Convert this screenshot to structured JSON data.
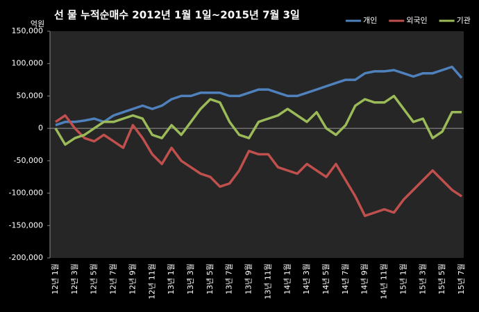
{
  "chart_data": {
    "type": "line",
    "title": "선 물 누적순매수 2012년 1월 1일~2015년 7월 3일",
    "y_label": "억원",
    "categories": [
      "12년 1월",
      null,
      "12년 3월",
      null,
      "12년 5월",
      null,
      "12년 7월",
      null,
      "12년 9월",
      null,
      "12년 11월",
      null,
      "13년 1월",
      null,
      "13년 3월",
      null,
      "13년 5월",
      null,
      "13년 7월",
      null,
      "13년 9월",
      null,
      "13년 11월",
      null,
      "14년 1월",
      null,
      "14년 3월",
      null,
      "14년 5월",
      null,
      "14년 7월",
      null,
      "14년 9월",
      null,
      "14년 11월",
      null,
      "15년 1월",
      null,
      "15년 3월",
      null,
      "15년 5월",
      null,
      "15년 7월"
    ],
    "series": [
      {
        "name": "개인",
        "color": "#4f81bd",
        "values": [
          5000,
          10000,
          10000,
          12000,
          15000,
          10000,
          20000,
          25000,
          30000,
          35000,
          30000,
          35000,
          45000,
          50000,
          50000,
          55000,
          55000,
          55000,
          50000,
          50000,
          55000,
          60000,
          60000,
          55000,
          50000,
          50000,
          55000,
          60000,
          65000,
          70000,
          75000,
          75000,
          85000,
          88000,
          88000,
          90000,
          85000,
          80000,
          85000,
          85000,
          90000,
          95000,
          78000
        ]
      },
      {
        "name": "외국인",
        "color": "#c0504d",
        "values": [
          10000,
          20000,
          0,
          -15000,
          -20000,
          -10000,
          -20000,
          -30000,
          5000,
          -15000,
          -40000,
          -55000,
          -30000,
          -50000,
          -60000,
          -70000,
          -75000,
          -90000,
          -85000,
          -65000,
          -35000,
          -40000,
          -40000,
          -60000,
          -65000,
          -70000,
          -55000,
          -65000,
          -75000,
          -55000,
          -80000,
          -105000,
          -135000,
          -130000,
          -125000,
          -130000,
          -110000,
          -95000,
          -80000,
          -65000,
          -80000,
          -95000,
          -105000
        ]
      },
      {
        "name": "기관",
        "color": "#9bbb59",
        "values": [
          0,
          -25000,
          -15000,
          -10000,
          0,
          10000,
          10000,
          15000,
          20000,
          15000,
          -10000,
          -15000,
          5000,
          -10000,
          10000,
          30000,
          45000,
          40000,
          10000,
          -10000,
          -15000,
          10000,
          15000,
          20000,
          30000,
          20000,
          10000,
          25000,
          0,
          -10000,
          5000,
          35000,
          45000,
          40000,
          40000,
          50000,
          30000,
          10000,
          15000,
          -15000,
          -5000,
          25000,
          25000
        ]
      }
    ],
    "ylim": [
      -200000,
      150000
    ],
    "yticks": [
      {
        "value": -200000,
        "label": "-200,000"
      },
      {
        "value": -150000,
        "label": "-150,000"
      },
      {
        "value": -100000,
        "label": "-100,000"
      },
      {
        "value": -50000,
        "label": "-50,000"
      },
      0,
      {
        "value": 50000,
        "label": "50,000"
      },
      {
        "value": 100000,
        "label": "100,000"
      },
      {
        "value": 150000,
        "label": "150,000"
      }
    ],
    "legend": "top-right",
    "grid": false
  }
}
